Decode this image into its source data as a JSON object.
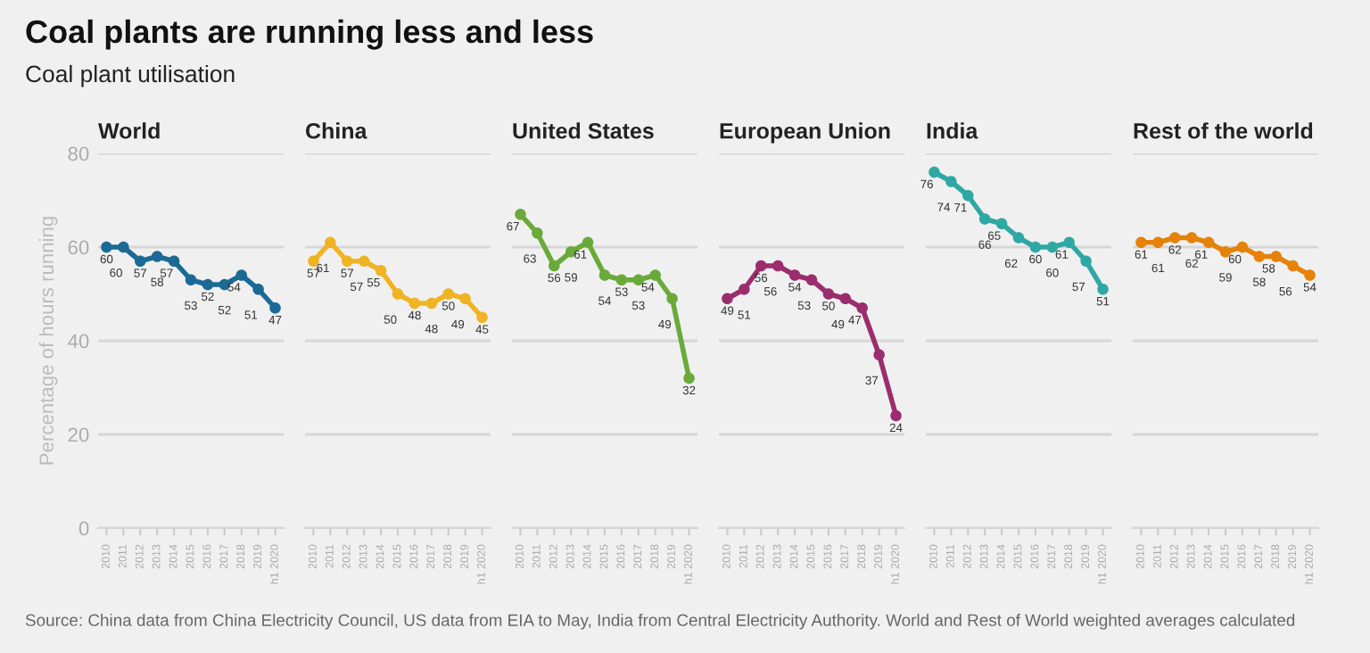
{
  "chart_data": [
    {
      "type": "line",
      "title": "World",
      "subtitle": "Coal plant utilisation",
      "ylabel": "Percentage of hours running",
      "categories": [
        "2010",
        "2011",
        "2012",
        "2013",
        "2014",
        "2015",
        "2016",
        "2017",
        "2018",
        "2019",
        "h1 2020"
      ],
      "values": [
        60,
        60,
        57,
        58,
        57,
        53,
        52,
        52,
        54,
        51,
        47
      ],
      "color": "#1b6a96",
      "ylim": [
        0,
        80
      ],
      "yticks": [
        0,
        20,
        40,
        60,
        80
      ],
      "grid": "y",
      "data_labels": true,
      "marker": "circle",
      "annotations": [
        "Coal plants are running less and less",
        "Source: China data from China Electricity Council, US data from EIA to May, India from Central Electricity Authority. World and Rest of World weighted averages calculated"
      ]
    },
    {
      "type": "line",
      "title": "China",
      "categories": [
        "2010",
        "2011",
        "2012",
        "2013",
        "2014",
        "2015",
        "2016",
        "2017",
        "2018",
        "2019",
        "h1 2020"
      ],
      "values": [
        57,
        61,
        57,
        57,
        55,
        50,
        48,
        48,
        50,
        49,
        45
      ],
      "color": "#f0b323",
      "ylim": [
        0,
        80
      ],
      "yticks": [
        0,
        20,
        40,
        60,
        80
      ],
      "grid": "y",
      "data_labels": true,
      "marker": "circle",
      "tick_labels": "x"
    },
    {
      "type": "line",
      "title": "United States",
      "categories": [
        "2010",
        "2011",
        "2012",
        "2013",
        "2014",
        "2015",
        "2016",
        "2017",
        "2018",
        "2019",
        "h1 2020"
      ],
      "values": [
        67,
        63,
        56,
        59,
        61,
        54,
        53,
        53,
        54,
        49,
        32
      ],
      "color": "#6aaa3a",
      "ylim": [
        0,
        80
      ],
      "yticks": [
        0,
        20,
        40,
        60,
        80
      ],
      "grid": "y",
      "data_labels": true,
      "marker": "circle",
      "tick_labels": "x"
    },
    {
      "type": "line",
      "title": "European Union",
      "categories": [
        "2010",
        "2011",
        "2012",
        "2013",
        "2014",
        "2015",
        "2016",
        "2017",
        "2018",
        "2019",
        "h1 2020"
      ],
      "values": [
        49,
        51,
        56,
        56,
        54,
        53,
        50,
        49,
        47,
        37,
        24
      ],
      "color": "#9b2d6f",
      "ylim": [
        0,
        80
      ],
      "yticks": [
        0,
        20,
        40,
        60,
        80
      ],
      "grid": "y",
      "data_labels": true,
      "marker": "circle",
      "tick_labels": "x"
    },
    {
      "type": "line",
      "title": "India",
      "categories": [
        "2010",
        "2011",
        "2012",
        "2013",
        "2014",
        "2015",
        "2016",
        "2017",
        "2018",
        "2019",
        "h1 2020"
      ],
      "values": [
        76,
        74,
        71,
        66,
        65,
        62,
        60,
        60,
        61,
        57,
        51
      ],
      "color": "#2fa8a5",
      "ylim": [
        0,
        80
      ],
      "yticks": [
        0,
        20,
        40,
        60,
        80
      ],
      "grid": "y",
      "data_labels": true,
      "marker": "circle",
      "tick_labels": "x"
    },
    {
      "type": "line",
      "title": "Rest of the world",
      "categories": [
        "2010",
        "2011",
        "2012",
        "2013",
        "2014",
        "2015",
        "2016",
        "2017",
        "2018",
        "2019",
        "h1 2020"
      ],
      "values": [
        61,
        61,
        62,
        62,
        61,
        59,
        60,
        58,
        58,
        56,
        54
      ],
      "color": "#e5820a",
      "ylim": [
        0,
        80
      ],
      "yticks": [
        0,
        20,
        40,
        60,
        80
      ],
      "grid": "y",
      "data_labels": true,
      "marker": "circle",
      "tick_labels": "x"
    }
  ]
}
